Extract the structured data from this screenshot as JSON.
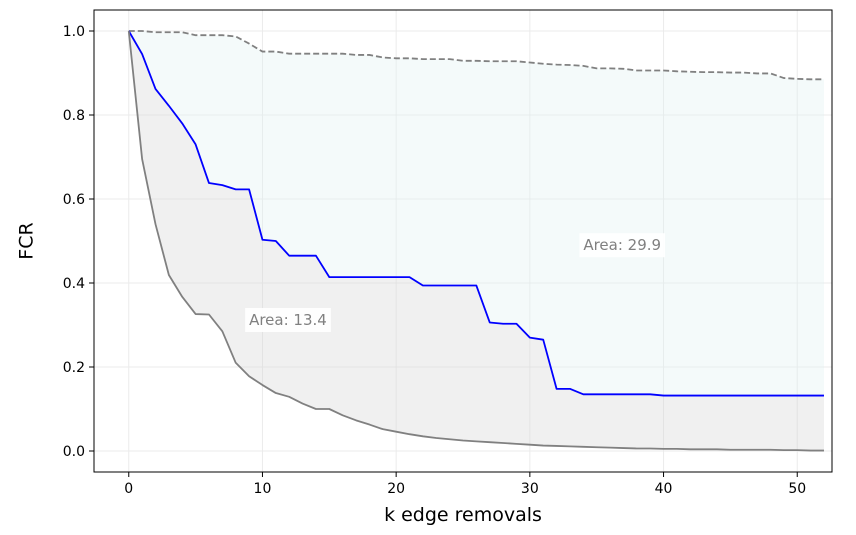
{
  "chart_data": {
    "type": "line",
    "title": "",
    "xlabel": "k edge removals",
    "ylabel": "FCR",
    "xlim": [
      -2.6,
      52.6
    ],
    "ylim": [
      -0.05,
      1.05
    ],
    "xticks": [
      0,
      10,
      20,
      30,
      40,
      50
    ],
    "yticks": [
      0.0,
      0.2,
      0.4,
      0.6,
      0.8,
      1.0
    ],
    "xtick_labels": [
      "0",
      "10",
      "20",
      "30",
      "40",
      "50"
    ],
    "ytick_labels": [
      "0.0",
      "0.2",
      "0.4",
      "0.6",
      "0.8",
      "1.0"
    ],
    "grid": true,
    "series": [
      {
        "style": "dashed",
        "color": "#808080",
        "x": [
          0,
          1,
          2,
          3,
          4,
          5,
          6,
          7,
          8,
          9,
          10,
          11,
          12,
          13,
          14,
          15,
          16,
          17,
          18,
          19,
          20,
          21,
          22,
          23,
          24,
          25,
          26,
          27,
          28,
          29,
          30,
          31,
          32,
          33,
          34,
          35,
          36,
          37,
          38,
          39,
          40,
          41,
          42,
          43,
          44,
          45,
          46,
          47,
          48,
          49,
          50,
          51,
          52
        ],
        "y": [
          1.0,
          1.0,
          0.997,
          0.997,
          0.997,
          0.99,
          0.99,
          0.99,
          0.987,
          0.97,
          0.951,
          0.951,
          0.946,
          0.946,
          0.946,
          0.946,
          0.946,
          0.943,
          0.943,
          0.937,
          0.935,
          0.935,
          0.933,
          0.933,
          0.933,
          0.929,
          0.929,
          0.928,
          0.928,
          0.928,
          0.925,
          0.922,
          0.92,
          0.919,
          0.917,
          0.911,
          0.911,
          0.91,
          0.906,
          0.906,
          0.906,
          0.904,
          0.903,
          0.902,
          0.902,
          0.901,
          0.901,
          0.899,
          0.899,
          0.888,
          0.886,
          0.885,
          0.885
        ]
      },
      {
        "style": "solid",
        "color": "#0000ff",
        "x": [
          0,
          1,
          2,
          3,
          4,
          5,
          6,
          7,
          8,
          9,
          10,
          11,
          12,
          13,
          14,
          15,
          16,
          17,
          18,
          19,
          20,
          21,
          22,
          23,
          24,
          25,
          26,
          27,
          28,
          29,
          30,
          31,
          32,
          33,
          34,
          35,
          36,
          37,
          38,
          39,
          40,
          41,
          42,
          43,
          44,
          45,
          46,
          47,
          48,
          49,
          50,
          51,
          52
        ],
        "y": [
          1.0,
          0.945,
          0.862,
          0.822,
          0.78,
          0.73,
          0.638,
          0.633,
          0.623,
          0.623,
          0.503,
          0.5,
          0.465,
          0.465,
          0.465,
          0.414,
          0.414,
          0.414,
          0.414,
          0.414,
          0.414,
          0.414,
          0.394,
          0.394,
          0.394,
          0.394,
          0.394,
          0.306,
          0.303,
          0.303,
          0.27,
          0.265,
          0.148,
          0.148,
          0.135,
          0.135,
          0.135,
          0.135,
          0.135,
          0.135,
          0.132,
          0.132,
          0.132,
          0.132,
          0.132,
          0.132,
          0.132,
          0.132,
          0.132,
          0.132,
          0.132,
          0.132,
          0.132
        ]
      },
      {
        "style": "solid",
        "color": "#808080",
        "x": [
          0,
          1,
          2,
          3,
          4,
          5,
          6,
          7,
          8,
          9,
          10,
          11,
          12,
          13,
          14,
          15,
          16,
          17,
          18,
          19,
          20,
          21,
          22,
          23,
          24,
          25,
          26,
          27,
          28,
          29,
          30,
          31,
          32,
          33,
          34,
          35,
          36,
          37,
          38,
          39,
          40,
          41,
          42,
          43,
          44,
          45,
          46,
          47,
          48,
          49,
          50,
          51,
          52
        ],
        "y": [
          1.0,
          0.695,
          0.54,
          0.419,
          0.367,
          0.326,
          0.325,
          0.285,
          0.21,
          0.178,
          0.157,
          0.138,
          0.129,
          0.113,
          0.1,
          0.1,
          0.085,
          0.073,
          0.063,
          0.052,
          0.046,
          0.04,
          0.035,
          0.031,
          0.028,
          0.025,
          0.023,
          0.021,
          0.019,
          0.017,
          0.015,
          0.013,
          0.012,
          0.011,
          0.01,
          0.009,
          0.008,
          0.007,
          0.006,
          0.006,
          0.005,
          0.005,
          0.004,
          0.004,
          0.004,
          0.003,
          0.003,
          0.003,
          0.003,
          0.002,
          0.002,
          0.001,
          0.001
        ]
      }
    ],
    "fills": [
      {
        "between": [
          0,
          1
        ],
        "color": "#e0f2f1",
        "opacity": 0.35
      },
      {
        "between": [
          1,
          2
        ],
        "color": "#d3d3d3",
        "opacity": 0.35
      }
    ],
    "annotations": [
      {
        "text": "Area: 29.9",
        "x": 34.0,
        "y": 0.478
      },
      {
        "text": "Area: 13.4",
        "x": 9.0,
        "y": 0.3
      }
    ]
  }
}
